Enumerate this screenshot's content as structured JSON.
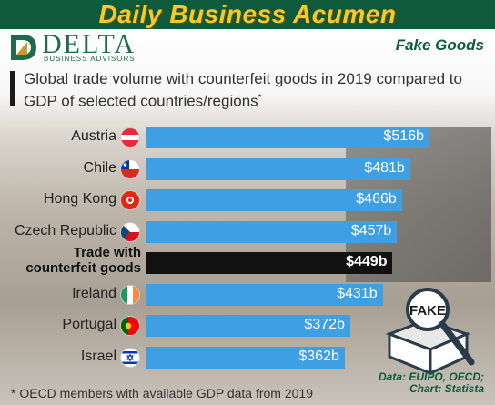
{
  "header": {
    "title": "Daily Business Acumen",
    "topic": "Fake Goods"
  },
  "logo": {
    "name": "DELTA",
    "tagline": "BUSINESS ADVISORS"
  },
  "colors": {
    "bar": "#3f9fe3",
    "highlight_bar": "#111111",
    "brand_green": "#0f5a3b",
    "banner_text": "#f6c928"
  },
  "chart_data": {
    "type": "bar",
    "orientation": "horizontal",
    "title": "Global trade volume with counterfeit goods in 2019 compared to GDP of selected countries/regions",
    "title_marker": "*",
    "categories": [
      "Austria",
      "Chile",
      "Hong Kong",
      "Czech Republic",
      "Trade with counterfeit goods",
      "Ireland",
      "Portugal",
      "Israel"
    ],
    "values": [
      516,
      481,
      466,
      457,
      449,
      431,
      372,
      362
    ],
    "value_labels": [
      "$516b",
      "$481b",
      "$466b",
      "$457b",
      "$449b",
      "$431b",
      "$372b",
      "$362b"
    ],
    "highlight": "Trade with counterfeit goods",
    "highlight_label_lines": [
      "Trade with",
      "counterfeit goods"
    ],
    "flags": [
      "austria-flag-icon",
      "chile-flag-icon",
      "hong-kong-flag-icon",
      "czech-flag-icon",
      "",
      "ireland-flag-icon",
      "portugal-flag-icon",
      "israel-flag-icon"
    ],
    "xlim": [
      0,
      516
    ],
    "grid": false,
    "legend": "none"
  },
  "illustration": {
    "label": "FAKE"
  },
  "source": {
    "line1": "Data: EUIPO, OECD;",
    "line2": "Chart: Statista"
  },
  "footnote": "* OECD members with available GDP data from 2019"
}
